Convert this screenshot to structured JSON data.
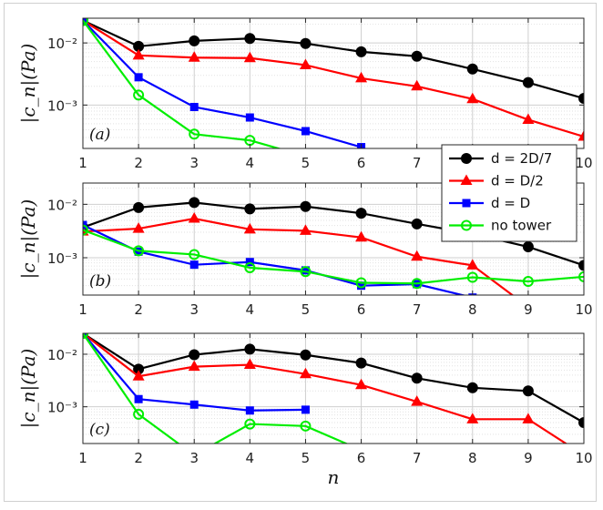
{
  "chart_data": [
    {
      "type": "line",
      "panel_label": "(a)",
      "ylabel": "|c_n|(Pa)",
      "xlabel": "",
      "yscale": "log",
      "ylim": [
        0.0002,
        0.025
      ],
      "xlim": [
        1,
        10
      ],
      "grid": true,
      "x": [
        1,
        2,
        3,
        4,
        5,
        6,
        7,
        8,
        9,
        10
      ],
      "series": [
        {
          "name": "d = 2D/7",
          "values": [
            0.023,
            0.0088,
            0.0108,
            0.0118,
            0.0098,
            0.0072,
            0.0061,
            0.0038,
            0.0023,
            0.00128
          ]
        },
        {
          "name": "d = D/2",
          "values": [
            0.023,
            0.0063,
            0.0058,
            0.0057,
            0.0044,
            0.0027,
            0.002,
            0.00125,
            0.00058,
            0.00031
          ]
        },
        {
          "name": "d = D",
          "values": [
            0.023,
            0.0028,
            0.00093,
            0.00063,
            0.00038,
            0.00021,
            null,
            null,
            null,
            null
          ]
        },
        {
          "name": "no tower",
          "values": [
            0.023,
            0.00145,
            0.00034,
            0.00027,
            0.00015,
            null,
            null,
            null,
            null,
            null
          ]
        }
      ]
    },
    {
      "type": "line",
      "panel_label": "(b)",
      "ylabel": "|c_n|(Pa)",
      "xlabel": "",
      "yscale": "log",
      "ylim": [
        0.0002,
        0.025
      ],
      "xlim": [
        1,
        10
      ],
      "grid": true,
      "x": [
        1,
        2,
        3,
        4,
        5,
        6,
        7,
        8,
        9,
        10
      ],
      "series": [
        {
          "name": "d = 2D/7",
          "values": [
            0.0037,
            0.0087,
            0.0108,
            0.0082,
            0.0091,
            0.0068,
            0.0043,
            0.0028,
            0.0016,
            0.00072
          ]
        },
        {
          "name": "d = D/2",
          "values": [
            0.0031,
            0.0035,
            0.0054,
            0.0034,
            0.0032,
            0.0024,
            0.00105,
            0.00072,
            0.00012,
            null
          ]
        },
        {
          "name": "d = D",
          "values": [
            0.0041,
            0.0013,
            0.00074,
            0.00083,
            0.00058,
            0.0003,
            0.00032,
            0.00018,
            null,
            null
          ]
        },
        {
          "name": "no tower",
          "values": [
            0.0033,
            0.00135,
            0.00115,
            0.00065,
            0.00055,
            0.00034,
            0.00033,
            0.00043,
            0.00036,
            0.00044
          ]
        }
      ]
    },
    {
      "type": "line",
      "panel_label": "(c)",
      "ylabel": "|c_n|(Pa)",
      "xlabel": "n",
      "yscale": "log",
      "ylim": [
        0.0002,
        0.025
      ],
      "xlim": [
        1,
        10
      ],
      "grid": true,
      "x": [
        1,
        2,
        3,
        4,
        5,
        6,
        7,
        8,
        9,
        10
      ],
      "series": [
        {
          "name": "d = 2D/7",
          "values": [
            0.025,
            0.0052,
            0.0098,
            0.0125,
            0.0097,
            0.0068,
            0.0035,
            0.0023,
            0.002,
            0.0005
          ]
        },
        {
          "name": "d = D/2",
          "values": [
            0.025,
            0.0038,
            0.0058,
            0.0063,
            0.0042,
            0.0026,
            0.00125,
            0.00058,
            0.00058,
            0.00012
          ]
        },
        {
          "name": "d = D",
          "values": [
            0.025,
            0.0014,
            0.0011,
            0.00085,
            0.00088,
            null,
            null,
            null,
            null,
            null
          ]
        },
        {
          "name": "no tower",
          "values": [
            0.025,
            0.00072,
            0.00012,
            0.00047,
            0.00043,
            0.00015,
            null,
            null,
            null,
            null
          ]
        }
      ]
    }
  ],
  "axes": {
    "ytick_labels": [
      "10⁻²",
      "10⁻³"
    ],
    "ytick_values": [
      0.01,
      0.001
    ],
    "xtick_labels": [
      "1",
      "2",
      "3",
      "4",
      "5",
      "6",
      "7",
      "8",
      "9",
      "10"
    ]
  },
  "legend": {
    "placement": "right, overlapping panels (a) and (b)",
    "entries": [
      {
        "label": "d = 2D/7",
        "color": "#000000",
        "marker": "circle-filled"
      },
      {
        "label": "d = D/2",
        "color": "#ff0000",
        "marker": "triangle-filled"
      },
      {
        "label": "d = D",
        "color": "#0000ff",
        "marker": "square-filled"
      },
      {
        "label": "no tower",
        "color": "#00ee00",
        "marker": "circle-open"
      }
    ]
  },
  "colors": {
    "d = 2D/7": "#000000",
    "d = D/2": "#ff0000",
    "d = D": "#0000ff",
    "no tower": "#00ee00"
  }
}
